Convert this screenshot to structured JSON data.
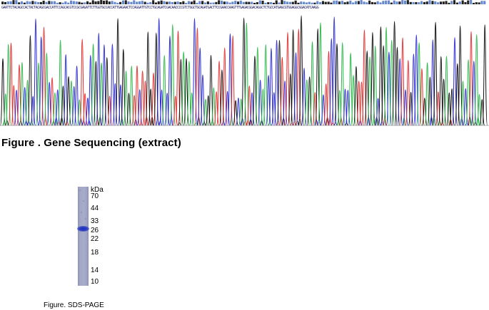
{
  "sequencing": {
    "sequence_text": "GAATTCTACAGCCACTACTACAGCGACCATTCCAGCACGTCCGCGAGATTCTTGGTGCCACCATTGAGAACTCCAGGATTGTCCTGCAGATCGACAACCCCGTCTGGCTGCAGATGACTTCCGAACCAAGTTTGAGACGGACAGGCTCTGCCATGAGCGTGGAGGCGGACATCAAGG",
    "caption": "Figure . Gene Sequencing (extract)",
    "base_colors": {
      "A": "#2db84a",
      "C": "#2a2ad6",
      "G": "#111111",
      "T": "#e03030"
    }
  },
  "sds_page": {
    "unit_label": "kDa",
    "markers": [
      "70",
      "44",
      "33",
      "26",
      "22",
      "18",
      "14",
      "10"
    ],
    "band_kda": 26,
    "caption": "Figure. SDS-PAGE",
    "lane_color": "#a4aac8",
    "band_color": "#2233bb"
  }
}
